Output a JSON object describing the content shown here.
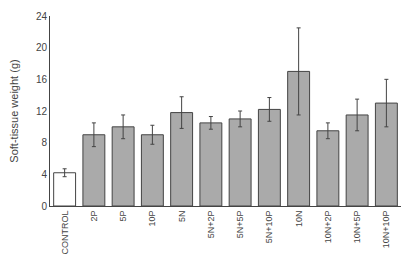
{
  "chart_data": {
    "type": "bar",
    "categories": [
      "CONTROL",
      "2P",
      "5P",
      "10P",
      "5N",
      "5N+2P",
      "5N+5P",
      "5N+10P",
      "10N",
      "10N+2P",
      "10N+5P",
      "10N+10P"
    ],
    "values": [
      4.2,
      9.0,
      10.0,
      9.0,
      11.8,
      10.5,
      11.0,
      12.2,
      17.0,
      9.5,
      11.5,
      13.0
    ],
    "errors": [
      0.5,
      1.5,
      1.5,
      1.2,
      2.0,
      0.8,
      1.0,
      1.5,
      5.5,
      1.0,
      2.0,
      3.0
    ],
    "colors": [
      "#ffffff",
      "#aaaaaa",
      "#aaaaaa",
      "#aaaaaa",
      "#aaaaaa",
      "#aaaaaa",
      "#aaaaaa",
      "#aaaaaa",
      "#aaaaaa",
      "#aaaaaa",
      "#aaaaaa",
      "#aaaaaa"
    ],
    "ylabel": "Soft-tissue weight (g)",
    "ylim": [
      0,
      24
    ],
    "yticks": [
      0,
      4,
      8,
      12,
      16,
      20,
      24
    ],
    "grid": false
  }
}
